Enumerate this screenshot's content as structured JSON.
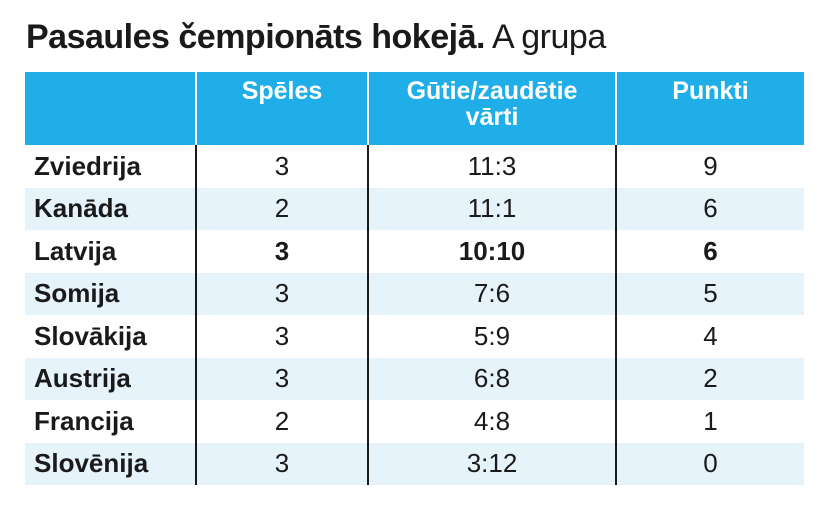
{
  "title": {
    "bold": "Pasaules čempionāts hokejā.",
    "normal": "A grupa"
  },
  "columns": {
    "team": "",
    "games": "Spēles",
    "goals_line1": "Gūtie/zaudētie",
    "goals_line2": "vārti",
    "points": "Punkti"
  },
  "rows": [
    {
      "team": "Zviedrija",
      "games": "3",
      "goals": "11:3",
      "points": "9"
    },
    {
      "team": "Kanāda",
      "games": "2",
      "goals": "11:1",
      "points": "6"
    },
    {
      "team": "Latvija",
      "games": "3",
      "goals": "10:10",
      "points": "6"
    },
    {
      "team": "Somija",
      "games": "3",
      "goals": "7:6",
      "points": "5"
    },
    {
      "team": "Slovākija",
      "games": "3",
      "goals": "5:9",
      "points": "4"
    },
    {
      "team": "Austrija",
      "games": "3",
      "goals": "6:8",
      "points": "2"
    },
    {
      "team": "Francija",
      "games": "2",
      "goals": "4:8",
      "points": "1"
    },
    {
      "team": "Slovēnija",
      "games": "3",
      "goals": "3:12",
      "points": "0"
    }
  ],
  "highlighted_team": "Latvija",
  "colors": {
    "header_bg": "#20aee8",
    "row_alt_bg": "#e6f3fb"
  }
}
